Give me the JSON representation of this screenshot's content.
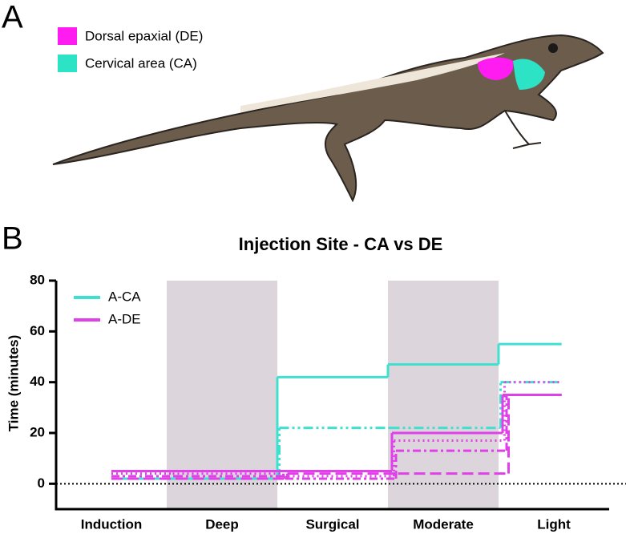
{
  "figure": {
    "panel_a": "A",
    "panel_b": "B",
    "regions": [
      {
        "label": "Dorsal epaxial (DE)",
        "color": "#ff1cf0"
      },
      {
        "label": "Cervical area (CA)",
        "color": "#2de3c6"
      }
    ]
  },
  "chart_data": {
    "type": "step",
    "title": "Injection Site - CA vs DE",
    "y_label": "Time (minutes)",
    "categories": [
      "Induction",
      "Deep",
      "Surgical",
      "Moderate",
      "Light"
    ],
    "shaded_bands": [
      1,
      3
    ],
    "shade_color": "#dcd6dc",
    "ylim": [
      -10,
      80
    ],
    "yticks": [
      0,
      20,
      40,
      60,
      80
    ],
    "zero_line": true,
    "legend": "top-left",
    "series": [
      {
        "name": "A-CA",
        "color": "#40e0d0",
        "lines": [
          {
            "dash": "none",
            "values": [
              2,
              2,
              42,
              47,
              55
            ]
          },
          {
            "dash": "12 4 3 4 3 4",
            "values": [
              2,
              2,
              22,
              22,
              40
            ]
          }
        ]
      },
      {
        "name": "A-DE",
        "color": "#e040e8",
        "lines": [
          {
            "dash": "none",
            "values": [
              5,
              5,
              5,
              20,
              35
            ]
          },
          {
            "dash": "2 4",
            "values": [
              4,
              4,
              3,
              17,
              40
            ]
          },
          {
            "dash": "10 4 3 4",
            "values": [
              3,
              3,
              2,
              13,
              35
            ]
          },
          {
            "dash": "14 6",
            "values": [
              2,
              2,
              4,
              4,
              35
            ]
          }
        ]
      }
    ]
  }
}
